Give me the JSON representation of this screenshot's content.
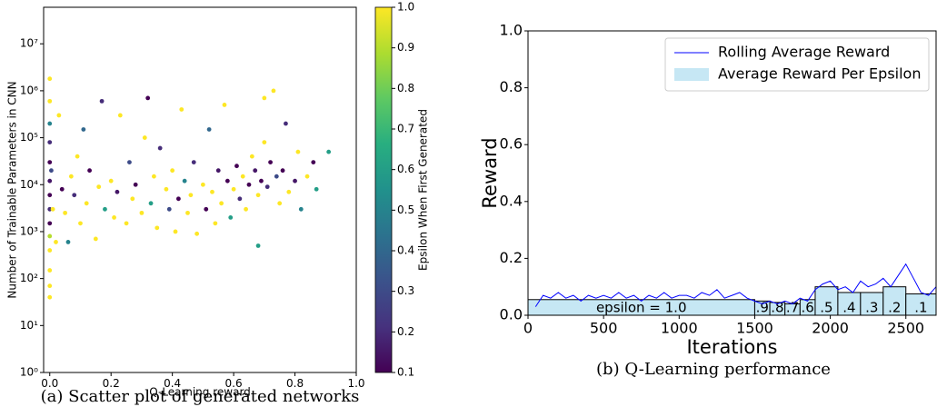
{
  "chart_data": [
    {
      "type": "scatter",
      "caption": "(a) Scatter plot of generated networks",
      "xlabel": "Q-Learning reward",
      "ylabel": "Number of Trainable Parameters in CNN",
      "colorbar_label": "Epsilon When First Generated",
      "colormap": "viridis",
      "yscale": "log",
      "xlim": [
        -0.02,
        1.0
      ],
      "ylim": [
        1,
        60000000
      ],
      "clim": [
        0.1,
        1.0
      ],
      "xticks": [
        {
          "value": 0,
          "label": "0.0"
        },
        0.2,
        0.4,
        0.6,
        0.8,
        {
          "value": 1,
          "label": "1.0"
        }
      ],
      "yticks": [
        {
          "value": 1,
          "label": "10⁰"
        },
        {
          "value": 10,
          "label": "10¹"
        },
        {
          "value": 100,
          "label": "10²"
        },
        {
          "value": 1000,
          "label": "10³"
        },
        {
          "value": 10000,
          "label": "10⁴"
        },
        {
          "value": 100000,
          "label": "10⁵"
        },
        {
          "value": 1000000,
          "label": "10⁶"
        },
        {
          "value": 10000000,
          "label": "10⁷"
        }
      ],
      "cticks": [
        0.1,
        0.2,
        0.3,
        0.4,
        0.5,
        0.6,
        0.7,
        0.8,
        0.9,
        {
          "value": 1,
          "label": "1.0"
        }
      ],
      "x": [
        0,
        0,
        0,
        0,
        0,
        0,
        0,
        0,
        0,
        0,
        0,
        0,
        0,
        0,
        0.005,
        0.01,
        0.02,
        0.03,
        0.04,
        0.05,
        0.06,
        0.07,
        0.08,
        0.09,
        0.1,
        0.11,
        0.12,
        0.13,
        0.15,
        0.16,
        0.17,
        0.18,
        0.2,
        0.21,
        0.22,
        0.23,
        0.25,
        0.26,
        0.27,
        0.28,
        0.3,
        0.31,
        0.32,
        0.33,
        0.34,
        0.35,
        0.36,
        0.38,
        0.39,
        0.4,
        0.41,
        0.42,
        0.43,
        0.44,
        0.45,
        0.46,
        0.47,
        0.48,
        0.5,
        0.51,
        0.52,
        0.53,
        0.54,
        0.55,
        0.56,
        0.57,
        0.58,
        0.59,
        0.6,
        0.61,
        0.62,
        0.63,
        0.64,
        0.65,
        0.66,
        0.67,
        0.68,
        0.69,
        0.7,
        0.71,
        0.72,
        0.73,
        0.74,
        0.75,
        0.76,
        0.77,
        0.78,
        0.8,
        0.81,
        0.82,
        0.84,
        0.86,
        0.87,
        0.91,
        0.68,
        0.7
      ],
      "values": [
        40,
        70,
        150,
        400,
        1500,
        3000,
        6000,
        12000,
        30000,
        80000,
        200000,
        600000,
        1800000,
        800,
        20000,
        3000,
        600,
        300000,
        8000,
        2500,
        600,
        15000,
        6000,
        40000,
        1500,
        150000,
        4000,
        20000,
        700,
        9000,
        600000,
        3000,
        12000,
        2000,
        7000,
        300000,
        1500,
        30000,
        5000,
        10000,
        2500,
        100000,
        700000,
        4000,
        15000,
        1200,
        60000,
        8000,
        3000,
        20000,
        1000,
        5000,
        400000,
        12000,
        2500,
        6000,
        30000,
        900,
        10000,
        3000,
        150000,
        7000,
        1500,
        20000,
        4000,
        500000,
        12000,
        2000,
        8000,
        25000,
        5000,
        15000,
        3000,
        10000,
        40000,
        20000,
        6000,
        12000,
        80000,
        9000,
        30000,
        1000000,
        15000,
        4000,
        20000,
        200000,
        7000,
        12000,
        50000,
        3000,
        15000,
        30000,
        8000,
        50000,
        500,
        700000
      ],
      "color_values": [
        1,
        1,
        1,
        1,
        0.1,
        0.2,
        0.1,
        0.15,
        0.1,
        0.2,
        0.5,
        1,
        1,
        0.9,
        0.3,
        1,
        1,
        1,
        0.1,
        1,
        0.5,
        1,
        0.2,
        1,
        1,
        0.4,
        1,
        0.1,
        1,
        1,
        0.2,
        0.6,
        1,
        1,
        0.15,
        1,
        1,
        0.3,
        1,
        0.1,
        1,
        1,
        0.1,
        0.6,
        1,
        1,
        0.2,
        1,
        0.3,
        1,
        1,
        0.1,
        1,
        0.5,
        1,
        1,
        0.2,
        1,
        1,
        0.1,
        0.4,
        1,
        1,
        0.15,
        1,
        1,
        0.1,
        0.6,
        1,
        0.1,
        0.2,
        1,
        1,
        0.1,
        1,
        0.15,
        1,
        0.1,
        1,
        0.2,
        0.1,
        1,
        0.3,
        1,
        0.1,
        0.2,
        1,
        0.15,
        1,
        0.5,
        1,
        0.1,
        0.6,
        0.6,
        0.6,
        1
      ]
    },
    {
      "type": "line",
      "caption": "(b) Q-Learning performance",
      "xlabel": "Iterations",
      "ylabel": "Reward",
      "legend": "upper right",
      "xlim": [
        0,
        2700
      ],
      "ylim": [
        0,
        1
      ],
      "xticks": [
        0,
        500,
        1000,
        1500,
        2000,
        2500
      ],
      "yticks": [
        {
          "value": 0,
          "label": "0.0"
        },
        0.2,
        0.4,
        0.6,
        0.8,
        {
          "value": 1,
          "label": "1.0"
        }
      ],
      "series": [
        {
          "name": "Rolling Average Reward",
          "type": "line",
          "color": "#0000ff",
          "x": [
            50,
            100,
            150,
            200,
            250,
            300,
            350,
            400,
            450,
            500,
            550,
            600,
            650,
            700,
            750,
            800,
            850,
            900,
            950,
            1000,
            1050,
            1100,
            1150,
            1200,
            1250,
            1300,
            1350,
            1400,
            1450,
            1500,
            1550,
            1600,
            1650,
            1700,
            1750,
            1800,
            1850,
            1900,
            1950,
            2000,
            2050,
            2100,
            2150,
            2200,
            2250,
            2300,
            2350,
            2400,
            2450,
            2500,
            2550,
            2600,
            2650,
            2700
          ],
          "values": [
            0.03,
            0.07,
            0.06,
            0.08,
            0.06,
            0.07,
            0.05,
            0.07,
            0.06,
            0.07,
            0.06,
            0.08,
            0.06,
            0.07,
            0.05,
            0.07,
            0.06,
            0.08,
            0.06,
            0.07,
            0.07,
            0.06,
            0.08,
            0.07,
            0.09,
            0.06,
            0.07,
            0.08,
            0.06,
            0.05,
            0.04,
            0.05,
            0.04,
            0.05,
            0.04,
            0.06,
            0.05,
            0.09,
            0.11,
            0.12,
            0.09,
            0.1,
            0.08,
            0.12,
            0.1,
            0.11,
            0.13,
            0.1,
            0.14,
            0.18,
            0.13,
            0.08,
            0.07,
            0.1
          ]
        },
        {
          "name": "Average Reward Per Epsilon",
          "type": "step",
          "color": "#c6e7f4",
          "bins": [
            0,
            1500,
            1600,
            1700,
            1800,
            1900,
            2050,
            2200,
            2350,
            2500,
            2700
          ],
          "values": [
            0.055,
            0.05,
            0.045,
            0.04,
            0.055,
            0.1,
            0.08,
            0.08,
            0.1,
            0.075
          ],
          "labels": [
            "epsilon = 1.0",
            ".9",
            ".8",
            ".7",
            ".6",
            ".5",
            ".4",
            ".3",
            ".2",
            ".1"
          ]
        }
      ]
    }
  ]
}
